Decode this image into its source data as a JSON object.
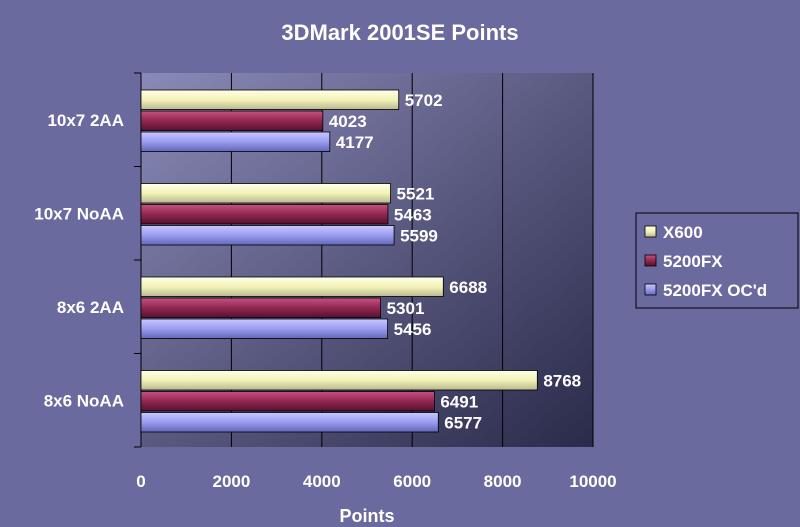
{
  "chart_data": {
    "type": "bar",
    "orientation": "horizontal",
    "title": "3DMark 2001SE Points",
    "xlabel": "Points",
    "ylabel": "",
    "xlim": [
      0,
      10000
    ],
    "x_ticks": [
      "0",
      "2000",
      "4000",
      "6000",
      "8000",
      "10000"
    ],
    "grid": true,
    "legend_position": "right",
    "categories": [
      "10x7 2AA",
      "10x7 NoAA",
      "8x6 2AA",
      "8x6 NoAA"
    ],
    "series": [
      {
        "name": "X600",
        "color": "#ffffc0",
        "values": [
          5702,
          5521,
          6688,
          8768
        ]
      },
      {
        "name": "5200FX",
        "color": "#a0305a",
        "values": [
          4023,
          5463,
          5301,
          6491
        ]
      },
      {
        "name": "5200FX OC'd",
        "color": "#9a9cf0",
        "values": [
          4177,
          5599,
          5456,
          6577
        ]
      }
    ]
  }
}
